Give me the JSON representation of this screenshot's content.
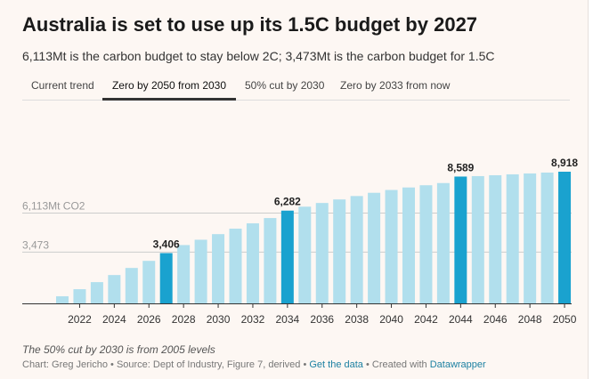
{
  "header": {
    "title": "Australia is set to use up its 1.5C budget by 2027",
    "subtitle": "6,113Mt is the carbon budget to stay below 2C; 3,473Mt is the carbon budget for 1.5C"
  },
  "tabs": [
    {
      "label": "Current trend",
      "active": false
    },
    {
      "label": "Zero by 2050 from 2030",
      "active": true
    },
    {
      "label": "50% cut by 2030",
      "active": false
    },
    {
      "label": "Zero by 2033 from now",
      "active": false
    }
  ],
  "colors": {
    "bar": "#b1dfed",
    "highlight": "#1aa2cf",
    "reference_line": "#cccccc",
    "reference_text": "#999999",
    "axis": "#333333",
    "label": "#222222"
  },
  "chart_data": {
    "type": "bar",
    "categories": [
      "2021",
      "2022",
      "2023",
      "2024",
      "2025",
      "2026",
      "2027",
      "2028",
      "2029",
      "2030",
      "2031",
      "2032",
      "2033",
      "2034",
      "2035",
      "2036",
      "2037",
      "2038",
      "2039",
      "2040",
      "2041",
      "2042",
      "2043",
      "2044",
      "2045",
      "2046",
      "2047",
      "2048",
      "2049",
      "2050"
    ],
    "x_tick_labels": [
      "2022",
      "2024",
      "2026",
      "2028",
      "2030",
      "2032",
      "2034",
      "2036",
      "2038",
      "2040",
      "2042",
      "2044",
      "2046",
      "2048",
      "2050"
    ],
    "values": [
      480,
      960,
      1440,
      1920,
      2400,
      2880,
      3406,
      3950,
      4310,
      4690,
      5060,
      5420,
      5780,
      6282,
      6550,
      6800,
      7040,
      7270,
      7490,
      7680,
      7850,
      8000,
      8150,
      8589,
      8620,
      8680,
      8740,
      8800,
      8860,
      8918
    ],
    "highlighted": [
      "2027",
      "2034",
      "2044",
      "2050"
    ],
    "data_labels": [
      {
        "category": "2027",
        "text": "3,406"
      },
      {
        "category": "2034",
        "text": "6,282"
      },
      {
        "category": "2044",
        "text": "8,589"
      },
      {
        "category": "2050",
        "text": "8,918"
      }
    ],
    "reference_lines": [
      {
        "value": 6113,
        "label": "6,113Mt CO2"
      },
      {
        "value": 3473,
        "label": "3,473"
      }
    ],
    "ylim": [
      0,
      10000
    ],
    "xlabel": "",
    "ylabel": ""
  },
  "footer": {
    "note": "The 50% cut by 2030 is from 2005 levels",
    "credit": "Chart: Greg Jericho • Source: Dept of Industry, Figure 7, derived • ",
    "get_data": "Get the data",
    "created_with": " • Created with ",
    "datawrapper": "Datawrapper"
  }
}
